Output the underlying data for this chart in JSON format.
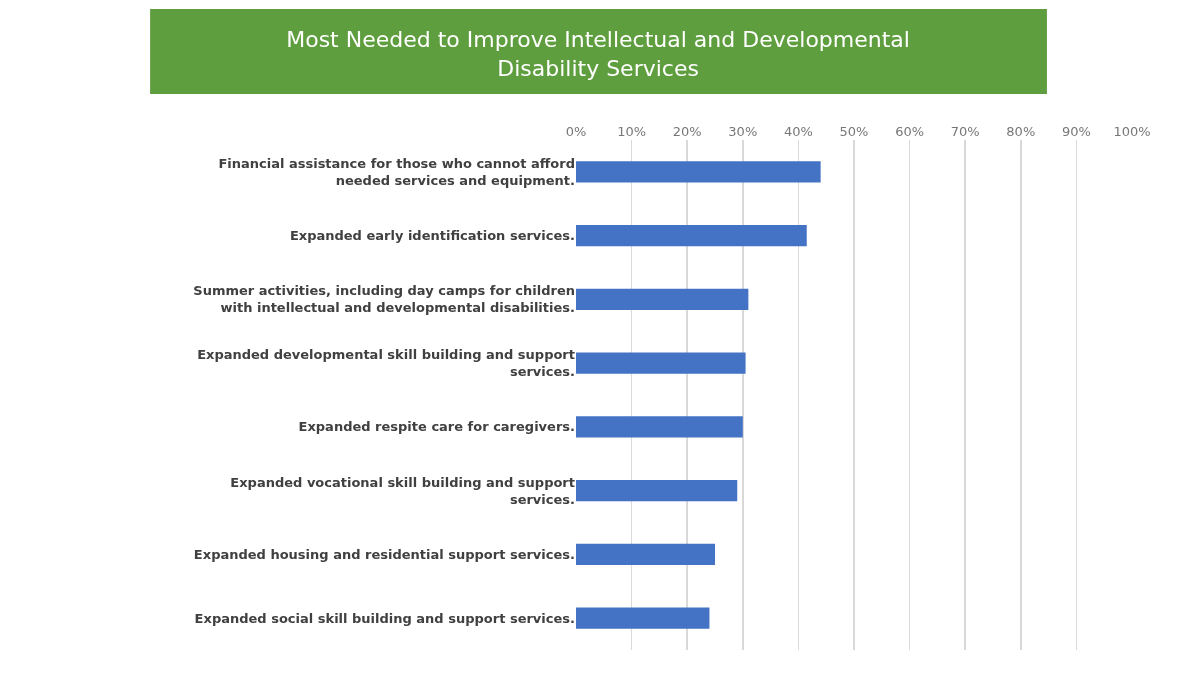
{
  "chart_data": {
    "type": "bar",
    "orientation": "horizontal",
    "title": "Most Needed to Improve Intellectual and Developmental Disability Services",
    "categories": [
      "Financial assistance for those who cannot afford needed services and equipment.",
      "Expanded early identification services.",
      "Summer activities, including day camps for children with intellectual and developmental disabilities.",
      "Expanded developmental skill building and support services.",
      "Expanded respite care for caregivers.",
      "Expanded vocational skill building and support services.",
      "Expanded housing and residential support services.",
      "Expanded social skill building and support services."
    ],
    "values": [
      44,
      41.5,
      31,
      30.5,
      30,
      29,
      25,
      24
    ],
    "color": "#4472c4",
    "xlim": [
      0,
      100
    ],
    "xticks": [
      {
        "value": 0,
        "label": "0%"
      },
      {
        "value": 10,
        "label": "10%"
      },
      {
        "value": 20,
        "label": "20%"
      },
      {
        "value": 30,
        "label": "30%"
      },
      {
        "value": 40,
        "label": "40%"
      },
      {
        "value": 50,
        "label": "50%"
      },
      {
        "value": 60,
        "label": "60%"
      },
      {
        "value": 70,
        "label": "70%"
      },
      {
        "value": 80,
        "label": "80%"
      },
      {
        "value": 90,
        "label": "90%"
      },
      {
        "value": 100,
        "label": "100%"
      }
    ],
    "grid": "x",
    "legend": false
  }
}
